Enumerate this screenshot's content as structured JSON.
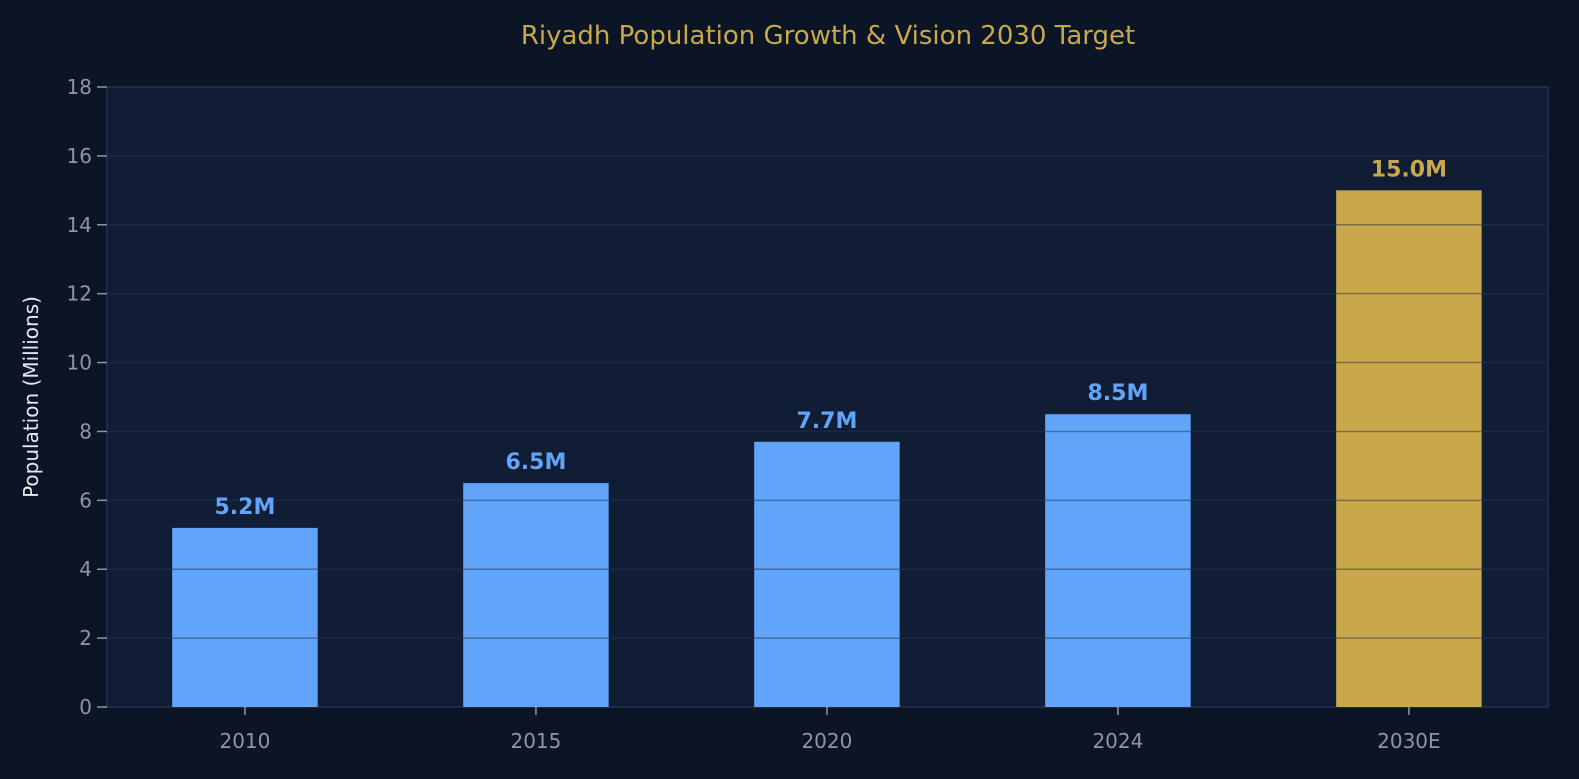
{
  "chart_data": {
    "type": "bar",
    "title": "Riyadh Population Growth & Vision 2030 Target",
    "xlabel": "",
    "ylabel": "Population (Millions)",
    "categories": [
      "2010",
      "2015",
      "2020",
      "2024",
      "2030E"
    ],
    "values": [
      5.2,
      6.5,
      7.7,
      8.5,
      15.0
    ],
    "data_labels": [
      "5.2M",
      "6.5M",
      "7.7M",
      "8.5M",
      "15.0M"
    ],
    "ylim": [
      0,
      18
    ],
    "yticks": [
      0,
      2,
      4,
      6,
      8,
      10,
      12,
      14,
      16,
      18
    ],
    "grid": true,
    "colors": {
      "actual": "#60a5fa",
      "target": "#c9a84c",
      "background": "#0b1526",
      "plot_background": "#111d35",
      "title": "#c9a84c"
    },
    "bar_kinds": [
      "actual",
      "actual",
      "actual",
      "actual",
      "target"
    ]
  }
}
